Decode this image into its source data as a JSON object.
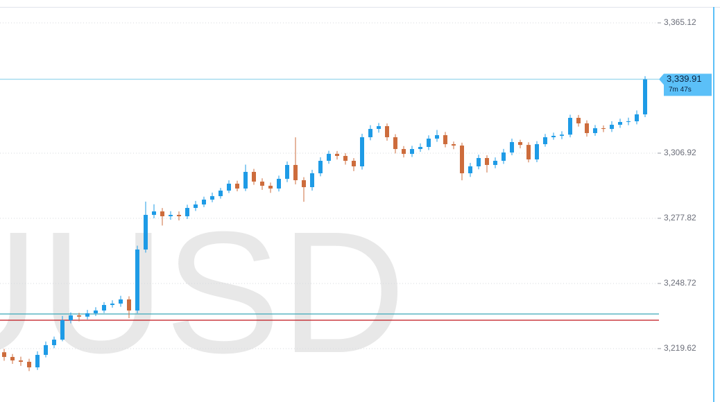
{
  "chart_data": {
    "type": "candlestick",
    "watermark": "UUSD",
    "up_color": "#1e9be6",
    "down_color": "#cd6c3c",
    "ylim": [
      3195.77,
      3372.24
    ],
    "yticks": [
      {
        "value": 3365.12,
        "label": "3,365.12"
      },
      {
        "value": 3306.92,
        "label": "3,306.92"
      },
      {
        "value": 3277.82,
        "label": "3,277.82"
      },
      {
        "value": 3248.72,
        "label": "3,248.72"
      },
      {
        "value": 3219.62,
        "label": "3,219.62"
      }
    ],
    "grid": true,
    "current_price": {
      "value": 3339.91,
      "label": "3,339.91",
      "countdown": "7m 47s",
      "color": "#5bc0f8",
      "line_color": "#a6dcef"
    },
    "levels": [
      {
        "value": 3235.09,
        "color": "#3aa8b8"
      },
      {
        "value": 3232.31,
        "color": "#c0141b"
      }
    ],
    "open": [
      3218.0,
      3215.89,
      3214.34,
      3213.73,
      3211.25,
      3216.82,
      3221.16,
      3223.63,
      3232.3,
      3234.47,
      3233.9,
      3235.4,
      3236.64,
      3239.11,
      3239.73,
      3241.59,
      3236.64,
      3263.88,
      3279.36,
      3280.91,
      3278.74,
      3279.36,
      3278.74,
      3282.46,
      3284.0,
      3286.17,
      3287.72,
      3290.2,
      3293.29,
      3291.13,
      3298.56,
      3294.22,
      3292.36,
      3291.13,
      3295.46,
      3301.65,
      3294.84,
      3291.74,
      3297.94,
      3303.51,
      3306.61,
      3305.68,
      3303.51,
      3301.03,
      3314.04,
      3317.75,
      3318.99,
      3314.04,
      3308.77,
      3306.61,
      3308.77,
      3309.7,
      3313.42,
      3314.96,
      3310.94,
      3310.32,
      3297.94,
      3301.03,
      3304.75,
      3301.65,
      3303.51,
      3307.22,
      3311.87,
      3310.6,
      3304.13,
      3310.94,
      3314.04,
      3314.66,
      3315.2,
      3322.7,
      3320.23,
      3315.89,
      3318.06,
      3317.75,
      3319.61,
      3320.85,
      3321.16,
      3324.25
    ],
    "high": [
      3219.5,
      3217.2,
      3216.0,
      3215.1,
      3218.4,
      3222.8,
      3225.0,
      3234.2,
      3235.8,
      3235.6,
      3236.9,
      3238.1,
      3240.4,
      3241.2,
      3243.2,
      3243.0,
      3265.6,
      3285.3,
      3284.1,
      3282.4,
      3281.0,
      3280.9,
      3283.9,
      3285.6,
      3287.5,
      3289.3,
      3291.4,
      3294.8,
      3294.6,
      3301.8,
      3299.9,
      3295.7,
      3293.8,
      3296.9,
      3303.2,
      3314.0,
      3296.2,
      3299.5,
      3305.1,
      3308.0,
      3307.9,
      3306.9,
      3304.7,
      3315.6,
      3319.4,
      3320.4,
      3320.2,
      3315.4,
      3310.1,
      3310.2,
      3311.3,
      3314.9,
      3317.3,
      3316.4,
      3312.1,
      3311.6,
      3302.6,
      3306.2,
      3306.0,
      3305.0,
      3308.8,
      3313.4,
      3312.9,
      3311.8,
      3312.3,
      3315.5,
      3316.1,
      3316.7,
      3324.1,
      3324.0,
      3321.6,
      3319.5,
      3319.3,
      3321.2,
      3322.3,
      3322.8,
      3326.0,
      3341.3
    ],
    "low": [
      3214.2,
      3212.8,
      3211.9,
      3209.6,
      3210.1,
      3215.7,
      3219.8,
      3222.9,
      3230.9,
      3231.8,
      3232.7,
      3234.2,
      3235.5,
      3237.9,
      3238.3,
      3233.2,
      3235.4,
      3262.5,
      3277.8,
      3274.6,
      3277.2,
      3276.9,
      3277.5,
      3281.1,
      3282.8,
      3285.0,
      3286.6,
      3289.1,
      3289.9,
      3290.0,
      3292.8,
      3290.5,
      3289.2,
      3289.8,
      3294.0,
      3293.0,
      3285.2,
      3290.2,
      3296.6,
      3302.2,
      3304.1,
      3301.8,
      3298.9,
      3299.6,
      3312.7,
      3316.1,
      3312.5,
      3306.8,
      3305.0,
      3305.2,
      3307.5,
      3308.3,
      3312.0,
      3309.5,
      3308.7,
      3294.8,
      3296.3,
      3299.7,
      3298.3,
      3300.2,
      3302.1,
      3306.0,
      3309.1,
      3302.8,
      3302.9,
      3309.8,
      3312.9,
      3313.2,
      3314.0,
      3318.8,
      3314.3,
      3314.7,
      3316.3,
      3316.4,
      3318.2,
      3319.4,
      3319.8,
      3323.0
    ],
    "close": [
      3215.89,
      3214.34,
      3213.73,
      3211.25,
      3216.82,
      3221.16,
      3223.63,
      3232.3,
      3234.47,
      3233.9,
      3235.4,
      3236.64,
      3239.11,
      3239.73,
      3241.59,
      3236.64,
      3263.88,
      3279.36,
      3280.91,
      3278.74,
      3279.36,
      3278.74,
      3282.46,
      3284.0,
      3286.17,
      3287.72,
      3290.2,
      3293.29,
      3291.13,
      3298.56,
      3294.22,
      3292.36,
      3291.13,
      3295.46,
      3301.65,
      3294.84,
      3291.74,
      3297.94,
      3303.51,
      3306.61,
      3305.68,
      3303.51,
      3301.03,
      3314.04,
      3317.75,
      3318.99,
      3314.04,
      3308.77,
      3306.61,
      3308.77,
      3309.7,
      3313.42,
      3314.96,
      3310.94,
      3310.32,
      3297.94,
      3301.03,
      3304.75,
      3301.65,
      3303.51,
      3307.22,
      3311.87,
      3310.6,
      3304.13,
      3310.94,
      3314.04,
      3314.66,
      3315.2,
      3322.7,
      3320.23,
      3315.89,
      3318.06,
      3317.75,
      3319.61,
      3320.85,
      3321.16,
      3324.25,
      3339.91
    ]
  }
}
